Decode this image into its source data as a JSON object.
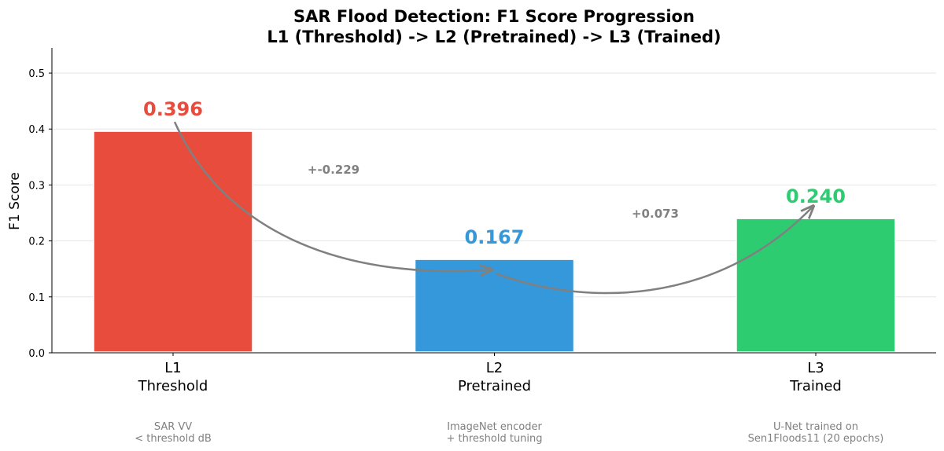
{
  "chart_data": {
    "type": "bar",
    "title": [
      "SAR Flood Detection: F1 Score Progression",
      "L1 (Threshold) -> L2 (Pretrained) -> L3 (Trained)"
    ],
    "xlabel": "",
    "ylabel": "F1 Score",
    "ylim": [
      0,
      0.545
    ],
    "yticks": [
      "0.0",
      "0.1",
      "0.2",
      "0.3",
      "0.4",
      "0.5"
    ],
    "grid": "horizontal",
    "categories": [
      {
        "label": "L1",
        "sublabel": "Threshold",
        "note": [
          "SAR VV",
          "< threshold dB"
        ]
      },
      {
        "label": "L2",
        "sublabel": "Pretrained",
        "note": [
          "ImageNet encoder",
          "+ threshold tuning"
        ]
      },
      {
        "label": "L3",
        "sublabel": "Trained",
        "note": [
          "U-Net trained on",
          "Sen1Floods11 (20 epochs)"
        ]
      }
    ],
    "values": [
      0.396,
      0.167,
      0.24
    ],
    "value_labels": [
      "0.396",
      "0.167",
      "0.240"
    ],
    "colors": [
      "#e74c3c",
      "#3498db",
      "#2ecc71"
    ],
    "deltas": [
      {
        "from": 0,
        "to": 1,
        "label": "+-0.229"
      },
      {
        "from": 1,
        "to": 2,
        "label": "+0.073"
      }
    ],
    "arrow_color": "#808080"
  }
}
